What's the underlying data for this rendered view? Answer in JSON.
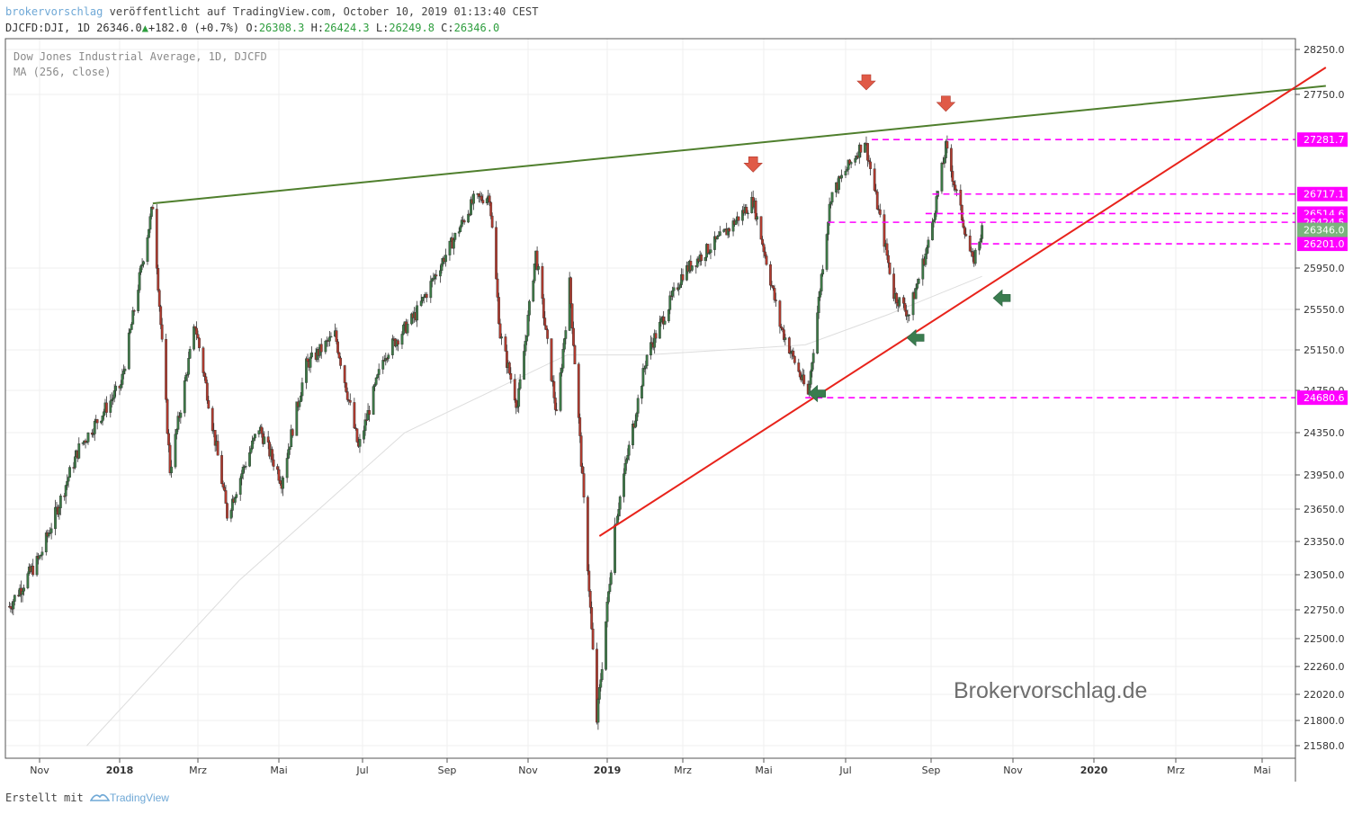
{
  "header": {
    "brand": "brokervorschlag",
    "published": " veröffentlicht auf TradingView.com, October 10, 2019 01:13:40 CEST",
    "symbol": "DJCFD:DJI, 1D",
    "last": "26346.0",
    "change_arrow": "▲",
    "change": "+182.0 (+0.7%)",
    "o_label": "O:",
    "o_value": "26308.3",
    "h_label": "H:",
    "h_value": "26424.3",
    "l_label": "L:",
    "l_value": "26249.8",
    "c_label": "C:",
    "c_value": "26346.0"
  },
  "legend": {
    "line1": "Dow Jones Industrial Average, 1D, DJCFD",
    "line2": "MA (256, close)"
  },
  "watermark": "Brokervorschlag.de",
  "footer": {
    "created_with": "Erstellt mit",
    "brand": "TradingView"
  },
  "colors": {
    "up": "#3d7a47",
    "down": "#b03a2e",
    "resistance": "#4f7f2d",
    "support": "#e8231b",
    "level": "#ff00ff",
    "arrow_down": "#e05a47",
    "arrow_left": "#3a7d4f",
    "ma": "#dddddd",
    "grid": "#efefef",
    "last_price": "#7bb37d"
  },
  "chart_data": {
    "type": "candlestick",
    "x_tick_labels": [
      "Nov",
      "2018",
      "Mrz",
      "Mai",
      "Jul",
      "Sep",
      "Nov",
      "2019",
      "Mrz",
      "Mai",
      "Jul",
      "Sep",
      "Nov",
      "2020",
      "Mrz",
      "Mai"
    ],
    "y_tick_labels": [
      "28250.0",
      "27750.0",
      "25950.0",
      "25550.0",
      "25150.0",
      "24750.0",
      "24350.0",
      "23950.0",
      "23650.0",
      "23350.0",
      "23050.0",
      "22750.0",
      "22500.0",
      "22260.0",
      "22020.0",
      "21800.0",
      "21580.0"
    ],
    "ylim": [
      21450,
      28400
    ],
    "price_levels": [
      {
        "label": "27281.7",
        "value": 27281.7,
        "from": "2019-07-20"
      },
      {
        "label": "26717.1",
        "value": 26717.1,
        "from": "2019-09-02"
      },
      {
        "label": "26514.6",
        "value": 26514.6,
        "from": "2019-08-28"
      },
      {
        "label": "26424.5",
        "value": 26424.5,
        "from": "2019-06-18"
      },
      {
        "label": "26201.0",
        "value": 26201.0,
        "from": "2019-10-01"
      },
      {
        "label": "24680.6",
        "value": 24680.6,
        "from": "2019-06-01"
      }
    ],
    "last_price": {
      "label": "26346.0",
      "value": 26346.0
    },
    "trendlines": [
      {
        "name": "resistance",
        "x": [
          "2018-01-26",
          "2020-06-15"
        ],
        "y": [
          26620,
          27845
        ]
      },
      {
        "name": "support",
        "x": [
          "2018-12-26",
          "2020-06-15"
        ],
        "y": [
          23400,
          28050
        ]
      }
    ],
    "markers": [
      {
        "type": "arrow-down",
        "x": "2019-04-23",
        "y": 27010
      },
      {
        "type": "arrow-down",
        "x": "2019-07-16",
        "y": 27870
      },
      {
        "type": "arrow-down",
        "x": "2019-09-12",
        "y": 27640
      },
      {
        "type": "arrow-left",
        "x": "2019-06-10",
        "y": 24720
      },
      {
        "type": "arrow-left",
        "x": "2019-08-21",
        "y": 25270
      },
      {
        "type": "arrow-left",
        "x": "2019-10-24",
        "y": 25660
      }
    ],
    "series": [
      {
        "name": "DJCFD:DJI",
        "x": [
          "2017-10-09",
          "2017-11-01",
          "2017-12-01",
          "2018-01-02",
          "2018-01-26",
          "2018-02-08",
          "2018-02-27",
          "2018-03-23",
          "2018-04-16",
          "2018-05-03",
          "2018-05-21",
          "2018-06-11",
          "2018-06-28",
          "2018-07-17",
          "2018-08-09",
          "2018-09-21",
          "2018-10-03",
          "2018-10-11",
          "2018-10-24",
          "2018-11-07",
          "2018-11-23",
          "2018-12-03",
          "2018-12-24",
          "2019-01-07",
          "2019-02-01",
          "2019-03-01",
          "2019-04-01",
          "2019-04-23",
          "2019-05-13",
          "2019-06-03",
          "2019-06-20",
          "2019-07-15",
          "2019-08-05",
          "2019-08-16",
          "2019-08-30",
          "2019-09-12",
          "2019-10-02",
          "2019-10-09"
        ],
        "y": [
          22780,
          23200,
          24200,
          24800,
          26600,
          24000,
          25400,
          23600,
          24400,
          23900,
          25000,
          25300,
          24200,
          25100,
          25500,
          26650,
          26700,
          25300,
          24600,
          26100,
          24500,
          25800,
          21800,
          23500,
          25100,
          25900,
          26300,
          26650,
          25400,
          24700,
          26700,
          27280,
          25700,
          25500,
          26200,
          27200,
          26000,
          26346
        ]
      },
      {
        "name": "MA (256, close)",
        "x": [
          "2017-12-07",
          "2018-04-01",
          "2018-08-01",
          "2018-12-01",
          "2019-02-01",
          "2019-06-01",
          "2019-08-01",
          "2019-10-09"
        ],
        "y": [
          21580,
          23000,
          24350,
          25100,
          25100,
          25200,
          25500,
          25870
        ]
      }
    ]
  }
}
